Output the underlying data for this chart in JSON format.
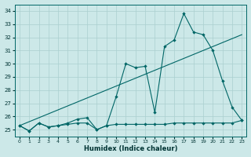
{
  "xlabel": "Humidex (Indice chaleur)",
  "bg_color": "#cce8e8",
  "grid_color": "#aacfcf",
  "line_color": "#006666",
  "xlim": [
    -0.5,
    23.5
  ],
  "ylim": [
    24.5,
    34.5
  ],
  "yticks": [
    25,
    26,
    27,
    28,
    29,
    30,
    31,
    32,
    33,
    34
  ],
  "xticks": [
    0,
    1,
    2,
    3,
    4,
    5,
    6,
    7,
    8,
    9,
    10,
    11,
    12,
    13,
    14,
    15,
    16,
    17,
    18,
    19,
    20,
    21,
    22,
    23
  ],
  "series1_x": [
    0,
    1,
    2,
    3,
    4,
    5,
    6,
    7,
    8,
    9,
    10,
    11,
    12,
    13,
    14,
    15,
    16,
    17,
    18,
    19,
    20,
    21,
    22,
    23
  ],
  "series1_y": [
    25.3,
    24.9,
    25.5,
    25.2,
    25.3,
    25.4,
    25.5,
    25.5,
    25.0,
    25.3,
    25.4,
    25.4,
    25.4,
    25.4,
    25.4,
    25.4,
    25.5,
    25.5,
    25.5,
    25.5,
    25.5,
    25.5,
    25.5,
    25.7
  ],
  "series2_x": [
    0,
    1,
    2,
    3,
    4,
    5,
    6,
    7,
    8,
    9,
    10,
    11,
    12,
    13,
    14,
    15,
    16,
    17,
    18,
    19,
    20,
    21,
    22,
    23
  ],
  "series2_y": [
    25.3,
    24.9,
    25.5,
    25.2,
    25.3,
    25.5,
    25.8,
    25.9,
    25.0,
    25.3,
    27.5,
    30.0,
    29.7,
    29.8,
    26.3,
    31.3,
    31.8,
    33.8,
    32.4,
    32.2,
    31.0,
    28.7,
    26.7,
    25.7
  ],
  "series3_x": [
    0,
    23
  ],
  "series3_y": [
    25.3,
    32.2
  ]
}
